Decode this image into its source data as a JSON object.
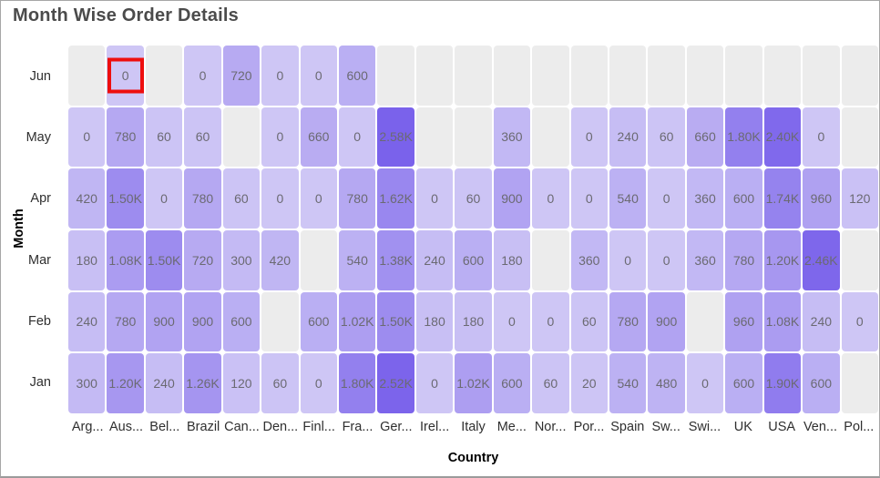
{
  "title": "Month Wise Order Details",
  "chart_data": {
    "type": "heatmap",
    "title": "Month Wise Order Details",
    "xlabel": "Country",
    "ylabel": "Month",
    "x_categories": [
      "Arg...",
      "Aus...",
      "Bel...",
      "Brazil",
      "Can...",
      "Den...",
      "Finl...",
      "Fra...",
      "Ger...",
      "Irel...",
      "Italy",
      "Me...",
      "Nor...",
      "Por...",
      "Spain",
      "Sw...",
      "Swi...",
      "UK",
      "USA",
      "Ven...",
      "Pol..."
    ],
    "y_categories": [
      "Jun",
      "May",
      "Apr",
      "Mar",
      "Feb",
      "Jan"
    ],
    "cells": [
      [
        null,
        "0",
        null,
        "0",
        "720",
        "0",
        "0",
        "600",
        null,
        null,
        null,
        null,
        null,
        null,
        null,
        null,
        null,
        null,
        null,
        null,
        null
      ],
      [
        "0",
        "780",
        "60",
        "60",
        null,
        "0",
        "660",
        "0",
        "2.58K",
        null,
        null,
        "360",
        null,
        "0",
        "240",
        "60",
        "660",
        "1.80K",
        "2.40K",
        "0",
        null
      ],
      [
        "420",
        "1.50K",
        "0",
        "780",
        "60",
        "0",
        "0",
        "780",
        "1.62K",
        "0",
        "60",
        "900",
        "0",
        "0",
        "540",
        "0",
        "360",
        "600",
        "1.74K",
        "960",
        "120"
      ],
      [
        "180",
        "1.08K",
        "1.50K",
        "720",
        "300",
        "420",
        null,
        "540",
        "1.38K",
        "240",
        "600",
        "180",
        null,
        "360",
        "0",
        "0",
        "360",
        "780",
        "1.20K",
        "2.46K",
        null
      ],
      [
        "240",
        "780",
        "900",
        "900",
        "600",
        null,
        "600",
        "1.02K",
        "1.50K",
        "180",
        "180",
        "0",
        "0",
        "60",
        "780",
        "900",
        null,
        "960",
        "1.08K",
        "240",
        "0"
      ],
      [
        "300",
        "1.20K",
        "240",
        "1.26K",
        "120",
        "60",
        "0",
        "1.80K",
        "2.52K",
        "0",
        "1.02K",
        "600",
        "60",
        "20",
        "540",
        "480",
        "0",
        "600",
        "1.90K",
        "600",
        null
      ]
    ],
    "value_scale": {
      "min": 0,
      "max": 2580
    },
    "colors": {
      "low": "#CEC6F5",
      "high": "#7A62EB",
      "empty": "#ECECEC",
      "cell_text": "#6B6A72",
      "highlight_border": "#EE0E0E"
    },
    "highlight": {
      "month": "Jun",
      "country": "Aus...",
      "row_index": 0,
      "col_index": 1,
      "value": "0"
    }
  }
}
